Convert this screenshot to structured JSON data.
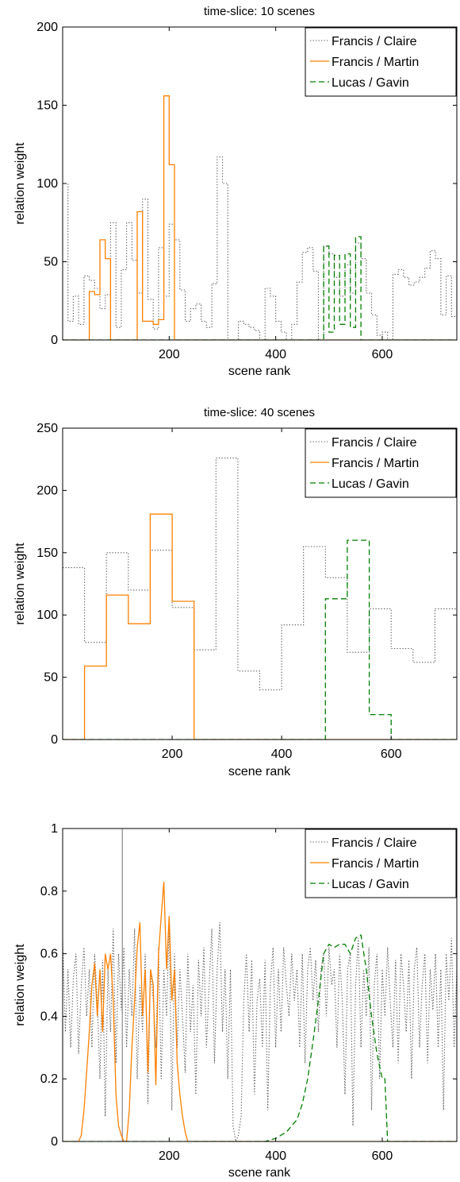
{
  "colors": {
    "francis_claire": "#555555",
    "francis_martin": "#ff8000",
    "lucas_gavin": "#008000",
    "axis": "#000000",
    "background": "#ffffff"
  },
  "chart_data": [
    {
      "type": "line",
      "step": true,
      "title": "time-slice: 10 scenes",
      "xlabel": "scene rank",
      "ylabel": "relation weight",
      "xlim": [
        0,
        740
      ],
      "ylim": [
        0,
        200
      ],
      "xticks": [
        200,
        400,
        600
      ],
      "yticks": [
        0,
        50,
        100,
        150,
        200
      ],
      "legend": "top-right",
      "grid": false,
      "series": [
        {
          "name": "Francis / Claire",
          "style": "dotted",
          "x": [
            0,
            10,
            20,
            30,
            40,
            50,
            60,
            70,
            80,
            90,
            100,
            110,
            120,
            130,
            140,
            150,
            160,
            170,
            180,
            190,
            200,
            210,
            220,
            230,
            240,
            250,
            260,
            270,
            280,
            290,
            300,
            310,
            320,
            330,
            340,
            350,
            360,
            370,
            380,
            390,
            400,
            410,
            420,
            430,
            440,
            450,
            460,
            470,
            480,
            490,
            500,
            510,
            520,
            530,
            540,
            550,
            560,
            570,
            580,
            590,
            600,
            610,
            620,
            630,
            640,
            650,
            660,
            670,
            680,
            690,
            700,
            710,
            720,
            730,
            740
          ],
          "y": [
            100,
            12,
            28,
            10,
            41,
            38,
            33,
            20,
            29,
            75,
            8,
            45,
            75,
            51,
            30,
            90,
            26,
            7,
            59,
            28,
            74,
            64,
            32,
            12,
            20,
            23,
            12,
            8,
            36,
            117,
            100,
            0,
            0,
            12,
            10,
            8,
            6,
            0,
            33,
            28,
            12,
            5,
            0,
            10,
            37,
            56,
            59,
            44,
            0,
            60,
            55,
            40,
            28,
            48,
            30,
            62,
            52,
            30,
            16,
            3,
            5,
            0,
            42,
            45,
            40,
            35,
            37,
            40,
            46,
            57,
            52,
            16,
            41,
            15,
            160
          ]
        },
        {
          "name": "Francis / Martin",
          "style": "solid",
          "x": [
            0,
            30,
            40,
            50,
            60,
            70,
            80,
            90,
            100,
            110,
            120,
            130,
            140,
            150,
            160,
            170,
            180,
            190,
            200,
            210,
            220,
            740
          ],
          "y": [
            0,
            0,
            0,
            31,
            29,
            64,
            52,
            0,
            0,
            0,
            0,
            0,
            82,
            12,
            12,
            10,
            13,
            156,
            112,
            0,
            0,
            0
          ]
        },
        {
          "name": "Lucas / Gavin",
          "style": "dashed",
          "x": [
            0,
            480,
            490,
            500,
            510,
            520,
            530,
            540,
            550,
            560,
            570,
            740
          ],
          "y": [
            0,
            0,
            60,
            5,
            54,
            10,
            55,
            8,
            66,
            0,
            0,
            0
          ]
        }
      ]
    },
    {
      "type": "line",
      "step": true,
      "title": "time-slice: 40 scenes",
      "xlabel": "scene rank",
      "ylabel": "relation weight",
      "xlim": [
        0,
        720
      ],
      "ylim": [
        0,
        250
      ],
      "xticks": [
        200,
        400,
        600
      ],
      "yticks": [
        0,
        50,
        100,
        150,
        200,
        250
      ],
      "legend": "top-right",
      "grid": false,
      "series": [
        {
          "name": "Francis / Claire",
          "style": "dotted",
          "x": [
            0,
            40,
            80,
            120,
            160,
            200,
            240,
            280,
            320,
            360,
            400,
            440,
            480,
            520,
            560,
            600,
            640,
            680,
            720
          ],
          "y": [
            138,
            78,
            150,
            120,
            152,
            106,
            72,
            226,
            55,
            40,
            92,
            155,
            130,
            70,
            105,
            73,
            62,
            105,
            195
          ]
        },
        {
          "name": "Francis / Martin",
          "style": "solid",
          "x": [
            0,
            40,
            80,
            120,
            160,
            200,
            240,
            720
          ],
          "y": [
            0,
            59,
            116,
            93,
            181,
            111,
            0,
            0
          ]
        },
        {
          "name": "Lucas / Gavin",
          "style": "dashed",
          "x": [
            0,
            480,
            520,
            560,
            600,
            720
          ],
          "y": [
            0,
            113,
            160,
            20,
            0,
            0
          ]
        }
      ]
    },
    {
      "type": "line",
      "step": false,
      "title": "",
      "xlabel": "scene rank",
      "ylabel": "relation weight",
      "xlim": [
        0,
        740
      ],
      "ylim": [
        0,
        1
      ],
      "xticks": [
        200,
        400,
        600
      ],
      "yticks": [
        0,
        0.2,
        0.4,
        0.6,
        0.8,
        1
      ],
      "legend": "top-right",
      "grid": false,
      "vline_x": 112,
      "series": [
        {
          "name": "Francis / Claire",
          "style": "dotted",
          "x": [
            0,
            5,
            10,
            15,
            20,
            25,
            30,
            35,
            40,
            45,
            50,
            55,
            60,
            65,
            70,
            75,
            80,
            85,
            90,
            95,
            100,
            105,
            110,
            115,
            120,
            125,
            130,
            135,
            140,
            145,
            150,
            155,
            160,
            165,
            170,
            175,
            180,
            185,
            190,
            195,
            200,
            205,
            210,
            215,
            220,
            225,
            230,
            235,
            240,
            245,
            250,
            255,
            260,
            265,
            270,
            275,
            280,
            285,
            290,
            295,
            300,
            305,
            310,
            315,
            320,
            325,
            330,
            335,
            340,
            345,
            350,
            355,
            360,
            365,
            370,
            375,
            380,
            385,
            390,
            395,
            400,
            405,
            410,
            415,
            420,
            425,
            430,
            435,
            440,
            445,
            450,
            455,
            460,
            465,
            470,
            475,
            480,
            485,
            490,
            495,
            500,
            505,
            510,
            515,
            520,
            525,
            530,
            535,
            540,
            545,
            550,
            555,
            560,
            565,
            570,
            575,
            580,
            585,
            590,
            595,
            600,
            605,
            610,
            615,
            620,
            625,
            630,
            635,
            640,
            645,
            650,
            655,
            660,
            665,
            670,
            675,
            680,
            685,
            690,
            695,
            700,
            705,
            710,
            715,
            720,
            725,
            730,
            735,
            740
          ],
          "y": [
            0.65,
            0.35,
            0.55,
            0.3,
            0.52,
            0.6,
            0.28,
            0.5,
            0.62,
            0.4,
            0.55,
            0.3,
            0.6,
            0.45,
            0.2,
            0.58,
            0.08,
            0.55,
            0.35,
            0.68,
            0.25,
            0.6,
            0.42,
            0.62,
            0.3,
            0.55,
            0.4,
            0.68,
            0.2,
            0.5,
            0.35,
            0.6,
            0.12,
            0.55,
            0.45,
            0.3,
            0.62,
            0.2,
            0.55,
            0.4,
            0.7,
            0.1,
            0.6,
            0.3,
            0.55,
            0.4,
            0.22,
            0.6,
            0.35,
            0.5,
            0.15,
            0.58,
            0.4,
            0.62,
            0.3,
            0.5,
            0.68,
            0.25,
            0.55,
            0.7,
            0.35,
            0.55,
            0.2,
            0.55,
            0.05,
            0.0,
            0.02,
            0.08,
            0.45,
            0.6,
            0.35,
            0.58,
            0.15,
            0.45,
            0.52,
            0.3,
            0.58,
            0.1,
            0.5,
            0.62,
            0.3,
            0.55,
            0.35,
            0.62,
            0.5,
            0.4,
            0.6,
            0.45,
            0.55,
            0.3,
            0.6,
            0.25,
            0.55,
            0.62,
            0.45,
            0.58,
            0.35,
            0.55,
            0.6,
            0.4,
            0.62,
            0.5,
            0.55,
            0.3,
            0.6,
            0.45,
            0.15,
            0.55,
            0.6,
            0.05,
            0.5,
            0.65,
            0.3,
            0.55,
            0.4,
            0.62,
            0.1,
            0.5,
            0.6,
            0.2,
            0.55,
            0.4,
            0.62,
            0.45,
            0.3,
            0.58,
            0.25,
            0.6,
            0.5,
            0.35,
            0.58,
            0.2,
            0.55,
            0.62,
            0.3,
            0.5,
            0.6,
            0.25,
            0.55,
            0.42,
            0.6,
            0.3,
            0.55,
            0.1,
            0.6,
            0.45,
            0.65,
            0.3,
            0.55
          ]
        },
        {
          "name": "Francis / Martin",
          "style": "solid",
          "x": [
            0,
            30,
            35,
            40,
            45,
            50,
            55,
            60,
            65,
            70,
            75,
            80,
            85,
            90,
            95,
            100,
            105,
            110,
            115,
            120,
            125,
            130,
            135,
            140,
            145,
            150,
            155,
            160,
            165,
            170,
            175,
            180,
            185,
            190,
            195,
            200,
            205,
            210,
            215,
            220,
            225,
            230,
            235,
            240,
            740
          ],
          "y": [
            0,
            0,
            0.02,
            0.1,
            0.22,
            0.35,
            0.5,
            0.57,
            0.4,
            0.55,
            0.35,
            0.6,
            0.55,
            0.6,
            0.45,
            0.15,
            0.05,
            0.02,
            0.0,
            0.0,
            0.1,
            0.3,
            0.45,
            0.62,
            0.7,
            0.4,
            0.55,
            0.22,
            0.55,
            0.5,
            0.18,
            0.6,
            0.72,
            0.83,
            0.55,
            0.72,
            0.45,
            0.55,
            0.25,
            0.15,
            0.08,
            0.03,
            0.0,
            0,
            0
          ]
        },
        {
          "name": "Lucas / Gavin",
          "style": "dashed",
          "x": [
            0,
            340,
            360,
            380,
            400,
            410,
            420,
            430,
            440,
            450,
            460,
            470,
            480,
            490,
            500,
            510,
            520,
            530,
            540,
            550,
            560,
            570,
            580,
            590,
            600,
            605,
            610,
            740
          ],
          "y": [
            0,
            0,
            0.0,
            0.0,
            0.01,
            0.02,
            0.03,
            0.05,
            0.07,
            0.12,
            0.2,
            0.32,
            0.45,
            0.6,
            0.63,
            0.62,
            0.63,
            0.63,
            0.6,
            0.65,
            0.66,
            0.55,
            0.4,
            0.28,
            0.2,
            0.2,
            0,
            0
          ]
        }
      ]
    }
  ]
}
